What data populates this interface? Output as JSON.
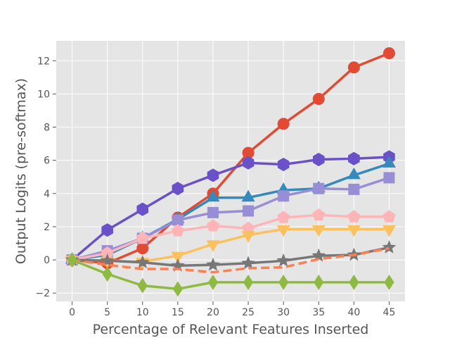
{
  "chart_data": {
    "type": "line",
    "xlabel": "Percentage of Relevant Features Inserted",
    "ylabel": "Output Logits (pre-softmax)",
    "xlim": [
      -2.25,
      47.25
    ],
    "ylim": [
      -2.5,
      13.2
    ],
    "x": [
      0,
      5,
      10,
      15,
      20,
      25,
      30,
      35,
      40,
      45
    ],
    "xticks": [
      "0",
      "5",
      "10",
      "15",
      "20",
      "25",
      "30",
      "35",
      "40",
      "45"
    ],
    "yticks": [
      -2,
      0,
      2,
      4,
      6,
      8,
      10,
      12
    ],
    "ytick_labels": [
      "−2",
      "0",
      "2",
      "4",
      "6",
      "8",
      "10",
      "12"
    ],
    "grid": true,
    "background": "#e5e5e5",
    "series": [
      {
        "color": "#e24a33",
        "marker": "circle",
        "dashed": false,
        "values": [
          0.0,
          -0.2,
          0.7,
          2.55,
          4.0,
          6.45,
          8.2,
          9.7,
          11.6,
          12.45
        ]
      },
      {
        "color": "#6a51c9",
        "marker": "hexagon",
        "dashed": false,
        "values": [
          0.0,
          1.8,
          3.05,
          4.3,
          5.1,
          5.85,
          5.75,
          6.05,
          6.1,
          6.2
        ]
      },
      {
        "color": "#348abd",
        "marker": "triangle-up",
        "dashed": false,
        "values": [
          0.0,
          0.3,
          1.3,
          2.45,
          3.75,
          3.75,
          4.2,
          4.3,
          5.1,
          5.8
        ]
      },
      {
        "color": "#988ed5",
        "marker": "square",
        "dashed": false,
        "values": [
          0.0,
          0.55,
          1.3,
          2.4,
          2.85,
          2.95,
          3.85,
          4.3,
          4.25,
          4.95
        ]
      },
      {
        "color": "#ffb5b8",
        "marker": "pentagon",
        "dashed": false,
        "values": [
          0.0,
          0.4,
          1.3,
          1.75,
          2.05,
          1.9,
          2.55,
          2.7,
          2.6,
          2.6
        ]
      },
      {
        "color": "#fbc15e",
        "marker": "triangle-down",
        "dashed": false,
        "values": [
          0.0,
          -0.05,
          -0.1,
          0.25,
          0.95,
          1.5,
          1.85,
          1.85,
          1.85,
          1.85
        ]
      },
      {
        "color": "#777777",
        "marker": "star",
        "dashed": false,
        "values": [
          0.0,
          -0.05,
          -0.15,
          -0.35,
          -0.3,
          -0.2,
          -0.05,
          0.25,
          0.3,
          0.75
        ]
      },
      {
        "color": "#ff7f50",
        "marker": "none",
        "dashed": true,
        "values": [
          0.0,
          -0.3,
          -0.55,
          -0.55,
          -0.75,
          -0.5,
          -0.45,
          0.05,
          0.3,
          0.7
        ]
      },
      {
        "color": "#8eba42",
        "marker": "diamond",
        "dashed": false,
        "values": [
          0.0,
          -0.85,
          -1.55,
          -1.75,
          -1.35,
          -1.35,
          -1.35,
          -1.35,
          -1.35,
          -1.35
        ]
      }
    ]
  }
}
